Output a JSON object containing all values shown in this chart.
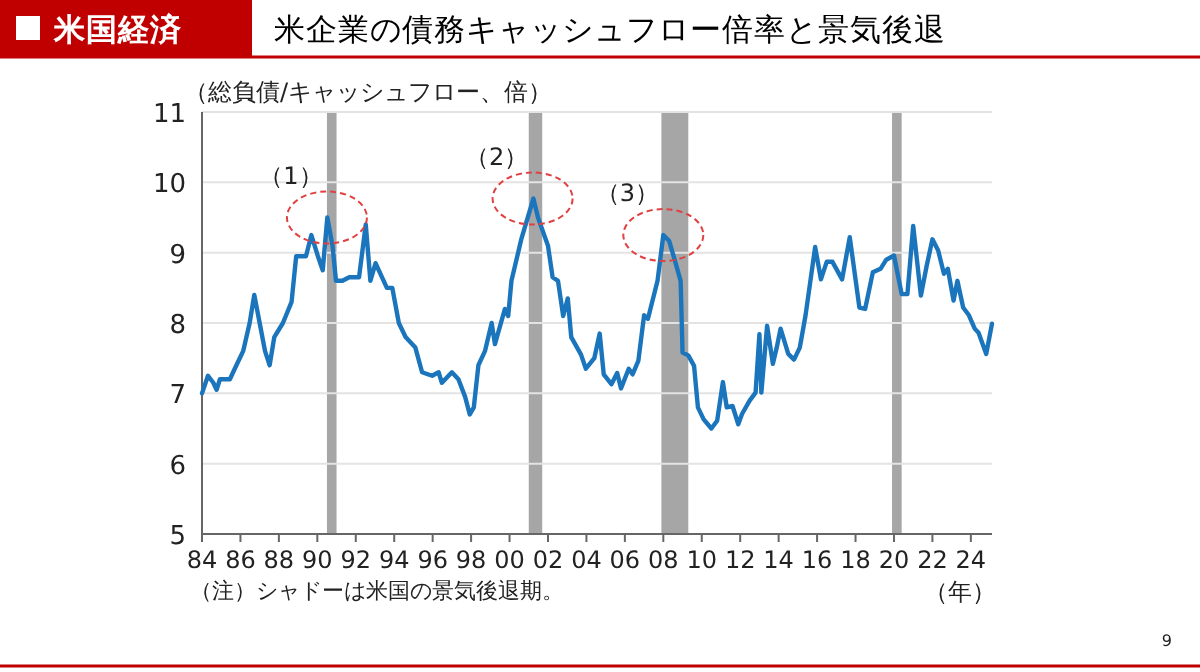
{
  "chart_data": {
    "type": "line",
    "title": "米企業の債務キャッシュフロー倍率と景気後退",
    "ylabel": "（総負債/キャッシュフロー、倍）",
    "xlabel": "（年）",
    "annotations": [
      "米国経済",
      "（注）シャドーは米国の景気後退期。",
      "9",
      {
        "text": "（1）",
        "x": 1990.5,
        "y": 9.5
      },
      {
        "text": "（2）",
        "x": 2001.2,
        "y": 9.77
      },
      {
        "text": "（3）",
        "x": 2008.0,
        "y": 9.25
      }
    ],
    "xlim": [
      1984,
      2025.1
    ],
    "ylim": [
      5,
      11
    ],
    "xticks": [
      {
        "value": 1984,
        "label": "84"
      },
      {
        "value": 1986,
        "label": "86"
      },
      {
        "value": 1988,
        "label": "88"
      },
      {
        "value": 1990,
        "label": "90"
      },
      {
        "value": 1992,
        "label": "92"
      },
      {
        "value": 1994,
        "label": "94"
      },
      {
        "value": 1996,
        "label": "96"
      },
      {
        "value": 1998,
        "label": "98"
      },
      {
        "value": 2000,
        "label": "00"
      },
      {
        "value": 2002,
        "label": "02"
      },
      {
        "value": 2004,
        "label": "04"
      },
      {
        "value": 2006,
        "label": "06"
      },
      {
        "value": 2008,
        "label": "08"
      },
      {
        "value": 2010,
        "label": "10"
      },
      {
        "value": 2012,
        "label": "12"
      },
      {
        "value": 2014,
        "label": "14"
      },
      {
        "value": 2016,
        "label": "16"
      },
      {
        "value": 2018,
        "label": "18"
      },
      {
        "value": 2020,
        "label": "20"
      },
      {
        "value": 2022,
        "label": "22"
      },
      {
        "value": 2024,
        "label": "24"
      }
    ],
    "yticks": [
      5,
      6,
      7,
      8,
      9,
      10,
      11
    ],
    "grid": "y",
    "marker": "none",
    "line_style": "solid",
    "bands": [
      {
        "axis": "x",
        "from": 1990.5,
        "to": 1991.0,
        "color": "#a6a6a6"
      },
      {
        "axis": "x",
        "from": 2001.0,
        "to": 2001.7,
        "color": "#a6a6a6"
      },
      {
        "axis": "x",
        "from": 2007.9,
        "to": 2009.3,
        "color": "#a6a6a6"
      },
      {
        "axis": "x",
        "from": 2019.9,
        "to": 2020.4,
        "color": "#a6a6a6"
      }
    ],
    "series": [
      {
        "color": "#1a75bc",
        "x": [
          1984.0,
          1984.31,
          1984.59,
          1984.76,
          1984.93,
          1985.45,
          1985.79,
          1986.14,
          1986.48,
          1986.72,
          1987.0,
          1987.28,
          1987.52,
          1987.76,
          1988.21,
          1988.66,
          1988.9,
          1989.41,
          1989.69,
          1990.03,
          1990.28,
          1990.52,
          1990.79,
          1990.97,
          1991.31,
          1991.66,
          1992.17,
          1992.52,
          1992.76,
          1993.03,
          1993.62,
          1993.9,
          1994.24,
          1994.59,
          1995.1,
          1995.45,
          1995.97,
          1996.31,
          1996.48,
          1997.0,
          1997.34,
          1997.69,
          1997.93,
          1998.14,
          1998.38,
          1998.72,
          1999.07,
          1999.24,
          1999.76,
          1999.93,
          2000.1,
          2000.62,
          2001.24,
          2001.48,
          2002.0,
          2002.24,
          2002.52,
          2002.79,
          2003.03,
          2003.21,
          2003.72,
          2003.97,
          2004.41,
          2004.69,
          2004.9,
          2005.3,
          2005.6,
          2005.8,
          2006.2,
          2006.4,
          2006.7,
          2007.0,
          2007.2,
          2007.7,
          2008.0,
          2008.3,
          2008.6,
          2008.9,
          2009.0,
          2009.3,
          2009.6,
          2009.8,
          2010.1,
          2010.5,
          2010.8,
          2011.1,
          2011.3,
          2011.6,
          2011.9,
          2012.1,
          2012.5,
          2012.8,
          2013.0,
          2013.1,
          2013.4,
          2013.7,
          2013.9,
          2014.1,
          2014.5,
          2014.8,
          2015.1,
          2015.4,
          2015.9,
          2016.2,
          2016.5,
          2016.8,
          2017.3,
          2017.7,
          2018.2,
          2018.5,
          2018.9,
          2019.3,
          2019.6,
          2020.0,
          2020.4,
          2020.7,
          2021.0,
          2021.4,
          2021.7,
          2022.0,
          2022.3,
          2022.6,
          2022.8,
          2023.1,
          2023.3,
          2023.6,
          2023.9,
          2024.2,
          2024.4,
          2024.8,
          2025.1
        ],
        "values": [
          7.0,
          7.25,
          7.15,
          7.05,
          7.2,
          7.2,
          7.4,
          7.6,
          8.0,
          8.4,
          8.0,
          7.6,
          7.4,
          7.8,
          8.0,
          8.3,
          8.95,
          8.95,
          9.25,
          8.95,
          8.75,
          9.5,
          9.1,
          8.6,
          8.6,
          8.65,
          8.65,
          9.4,
          8.6,
          8.85,
          8.5,
          8.5,
          8.0,
          7.8,
          7.65,
          7.3,
          7.25,
          7.3,
          7.15,
          7.3,
          7.2,
          6.95,
          6.7,
          6.8,
          7.4,
          7.6,
          8.0,
          7.7,
          8.2,
          8.1,
          8.6,
          9.2,
          9.77,
          9.5,
          9.1,
          8.65,
          8.6,
          8.1,
          8.35,
          7.8,
          7.55,
          7.35,
          7.5,
          7.85,
          7.27,
          7.13,
          7.29,
          7.07,
          7.35,
          7.27,
          7.46,
          8.11,
          8.06,
          8.6,
          9.25,
          9.17,
          8.89,
          8.6,
          7.58,
          7.54,
          7.39,
          6.8,
          6.63,
          6.5,
          6.61,
          7.16,
          6.8,
          6.82,
          6.56,
          6.71,
          6.9,
          7.01,
          7.84,
          7.01,
          7.96,
          7.42,
          7.65,
          7.92,
          7.56,
          7.48,
          7.65,
          8.11,
          9.08,
          8.62,
          8.87,
          8.87,
          8.62,
          9.22,
          8.22,
          8.2,
          8.72,
          8.77,
          8.9,
          8.96,
          8.41,
          8.41,
          9.38,
          8.39,
          8.81,
          9.19,
          9.03,
          8.7,
          8.77,
          8.32,
          8.6,
          8.22,
          8.11,
          7.92,
          7.86,
          7.56,
          7.99
        ]
      }
    ]
  }
}
